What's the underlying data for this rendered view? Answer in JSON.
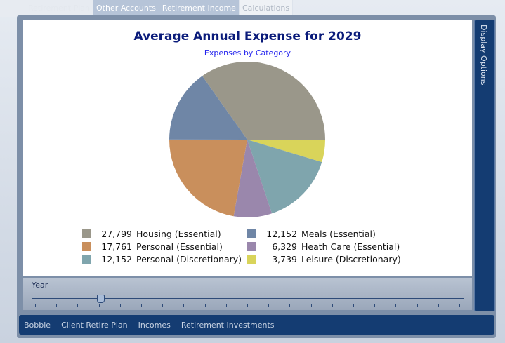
{
  "tabs": [
    {
      "label": "Retirement Plan"
    },
    {
      "label": "Other Accounts"
    },
    {
      "label": "Retirement Income"
    },
    {
      "label": "Calculations"
    }
  ],
  "chart_data": {
    "type": "pie",
    "title": "Average Annual Expense for 2029",
    "subtitle": "Expenses by Category",
    "slices": [
      {
        "label": "Housing (Essential)",
        "value": 27799,
        "display": "27,799",
        "color": "#9a978a"
      },
      {
        "label": "Personal (Essential)",
        "value": 17761,
        "display": "17,761",
        "color": "#c98f5c"
      },
      {
        "label": "Personal (Discretionary)",
        "value": 12152,
        "display": "12,152",
        "color": "#7fa5ad"
      },
      {
        "label": "Meals (Essential)",
        "value": 12152,
        "display": "12,152",
        "color": "#6f86a6"
      },
      {
        "label": "Heath Care (Essential)",
        "value": 6329,
        "display": "6,329",
        "color": "#9a87ac"
      },
      {
        "label": "Leisure (Discretionary)",
        "value": 3739,
        "display": "3,739",
        "color": "#d9d45a"
      }
    ],
    "clockwise_order_from_east": [
      5,
      2,
      4,
      1,
      3,
      0
    ]
  },
  "side": {
    "label": "Display Options"
  },
  "year": {
    "label": "Year",
    "ticks": 21,
    "selected_index": 4
  },
  "bottom_tabs": [
    {
      "label": "Bobbie"
    },
    {
      "label": "Client Retire Plan"
    },
    {
      "label": "Incomes"
    },
    {
      "label": "Retirement Investments"
    }
  ]
}
